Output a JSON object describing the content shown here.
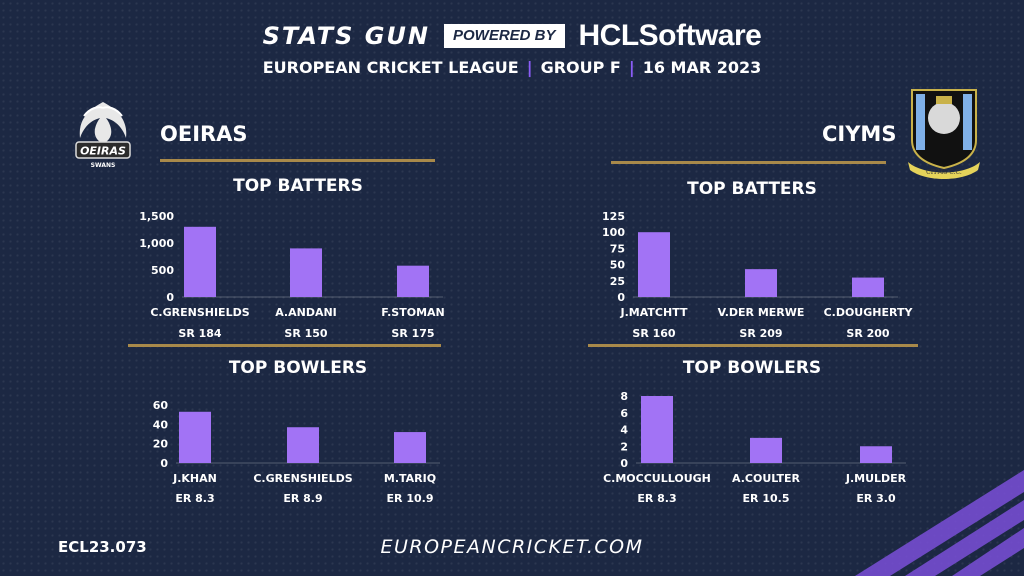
{
  "header": {
    "brand": "STATS GUN",
    "powered_by": "POWERED BY",
    "sponsor": "HCLSoftware",
    "league": "EUROPEAN CRICKET LEAGUE",
    "group": "GROUP  F",
    "date": "16 MAR 2023"
  },
  "teams": {
    "left": {
      "name": "OEIRAS",
      "logo_text": "OEIRAS",
      "logo_subtext": "SWANS"
    },
    "right": {
      "name": "CIYMS",
      "logo_text": "CIYMS C.C."
    }
  },
  "footer": {
    "code": "ECL23.073",
    "url": "EUROPEANCRICKET.COM"
  },
  "colors": {
    "bar": "#a273f5",
    "rule": "#a8894a",
    "background": "#1c2843",
    "accent": "#8a5cf6"
  },
  "chart_data": [
    {
      "type": "bar",
      "title": "TOP BATTERS",
      "team": "OEIRAS",
      "categories": [
        "C.GRENSHIELDS",
        "A.ANDANI",
        "F.STOMAN"
      ],
      "values": [
        1300,
        900,
        580
      ],
      "sublabels": [
        "SR 184",
        "SR 150",
        "SR 175"
      ],
      "ylim": [
        0,
        1500
      ],
      "yticks": [
        0,
        500,
        1000,
        1500
      ],
      "ytick_labels": [
        "0",
        "500",
        "1,000",
        "1,500"
      ],
      "grid": false
    },
    {
      "type": "bar",
      "title": "TOP BOWLERS",
      "team": "OEIRAS",
      "categories": [
        "J.KHAN",
        "C.GRENSHIELDS",
        "M.TARIQ"
      ],
      "values": [
        53,
        37,
        32
      ],
      "sublabels": [
        "ER 8.3",
        "ER 8.9",
        "ER 10.9"
      ],
      "ylim": [
        0,
        60
      ],
      "yticks": [
        0,
        20,
        40,
        60
      ],
      "ytick_labels": [
        "0",
        "20",
        "40",
        "60"
      ],
      "grid": false
    },
    {
      "type": "bar",
      "title": "TOP BATTERS",
      "team": "CIYMS",
      "categories": [
        "J.MATCHTT",
        "V.DER MERWE",
        "C.DOUGHERTY"
      ],
      "values": [
        100,
        43,
        30
      ],
      "sublabels": [
        "SR 160",
        "SR 209",
        "SR 200"
      ],
      "ylim": [
        0,
        125
      ],
      "yticks": [
        0,
        25,
        50,
        75,
        100,
        125
      ],
      "ytick_labels": [
        "0",
        "25",
        "50",
        "75",
        "100",
        "125"
      ],
      "grid": false
    },
    {
      "type": "bar",
      "title": "TOP BOWLERS",
      "team": "CIYMS",
      "categories": [
        "C.MOCCULLOUGH",
        "A.COULTER",
        "J.MULDER"
      ],
      "values": [
        8,
        3,
        2
      ],
      "sublabels": [
        "ER  8.3",
        "ER 10.5",
        "ER 3.0"
      ],
      "ylim": [
        0,
        8
      ],
      "yticks": [
        0,
        2,
        4,
        6,
        8
      ],
      "ytick_labels": [
        "0",
        "2",
        "4",
        "6",
        "8"
      ],
      "grid": false
    }
  ]
}
